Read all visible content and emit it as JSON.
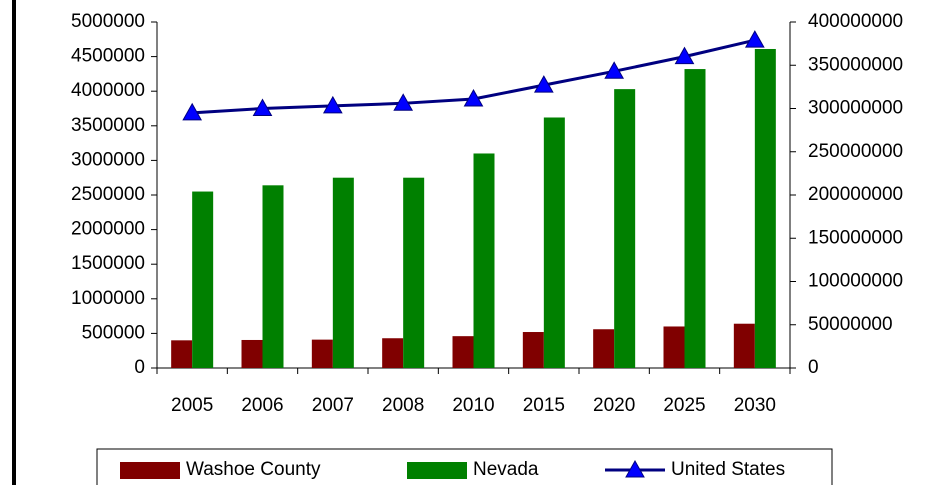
{
  "chart_data": {
    "type": "bar",
    "categories": [
      "2005",
      "2006",
      "2007",
      "2008",
      "2010",
      "2015",
      "2020",
      "2025",
      "2030"
    ],
    "series": [
      {
        "name": "Washoe County",
        "color": "#800000",
        "type": "bar",
        "values": [
          400000,
          405000,
          410000,
          430000,
          460000,
          520000,
          560000,
          600000,
          640000
        ]
      },
      {
        "name": "Nevada",
        "color": "#008000",
        "type": "bar",
        "values": [
          2550000,
          2640000,
          2750000,
          2750000,
          3100000,
          3620000,
          4030000,
          4320000,
          4610000
        ]
      },
      {
        "name": "United States",
        "color": "#000080",
        "marker_color": "#0000ff",
        "type": "line",
        "axis": "y2",
        "values": [
          295000000,
          300000000,
          303000000,
          306000000,
          311000000,
          327000000,
          343000000,
          360000000,
          379000000
        ]
      }
    ],
    "ylim": [
      0,
      5000000
    ],
    "yticks": [
      0,
      500000,
      1000000,
      1500000,
      2000000,
      2500000,
      3000000,
      3500000,
      4000000,
      4500000,
      5000000
    ],
    "y2lim": [
      0,
      400000000
    ],
    "y2ticks": [
      0,
      50000000,
      100000000,
      150000000,
      200000000,
      250000000,
      300000000,
      350000000,
      400000000
    ],
    "grid": false,
    "legend": "bottom"
  }
}
